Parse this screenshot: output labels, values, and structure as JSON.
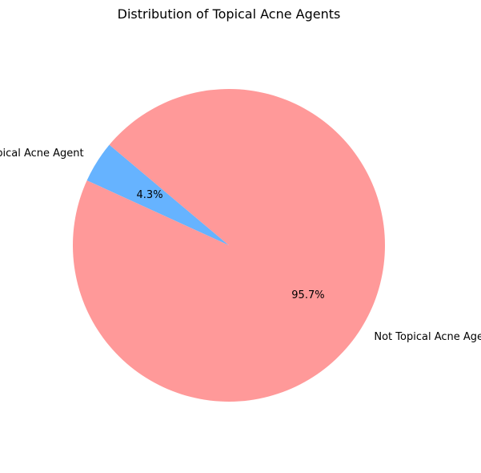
{
  "chart_data": {
    "type": "pie",
    "title": "Distribution of Topical Acne Agents",
    "slices": [
      {
        "label": "Topical Acne Agent",
        "value": 4.3,
        "pct_label": "4.3%",
        "color": "#66b3ff"
      },
      {
        "label": "Not Topical Acne Agent",
        "value": 95.7,
        "pct_label": "95.7%",
        "color": "#ff9999"
      }
    ],
    "start_angle_deg": 140,
    "direction": "counterclockwise",
    "legend": "none"
  }
}
